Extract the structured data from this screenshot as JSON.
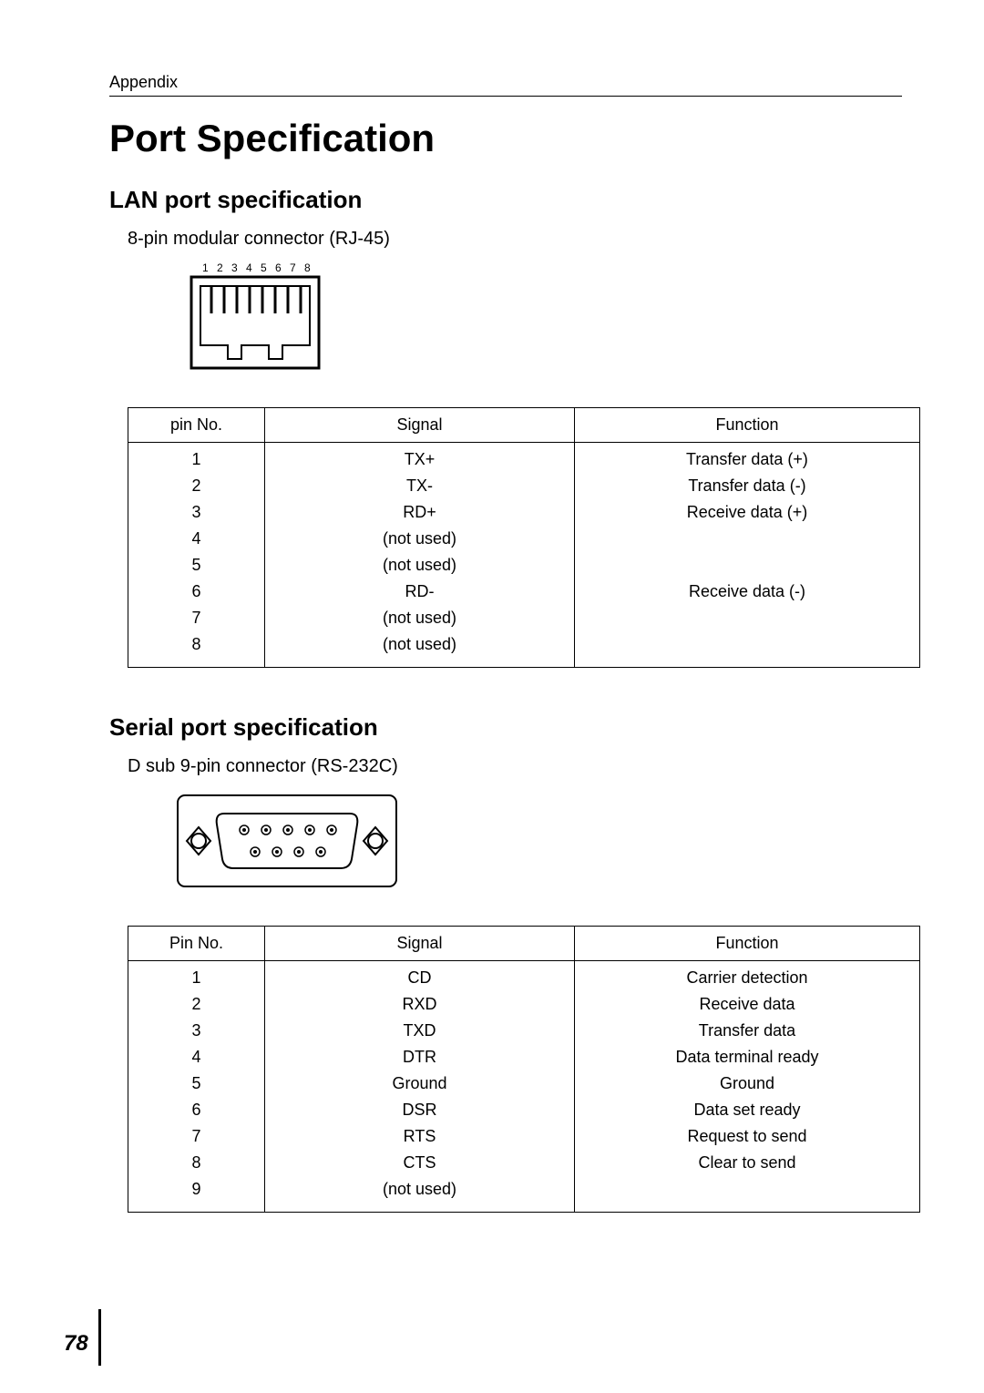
{
  "header": {
    "section": "Appendix"
  },
  "title": "Port Specification",
  "lan": {
    "heading": "LAN port specification",
    "connector": "8-pin modular connector (RJ-45)",
    "pin_labels": "1 2 3 4 5 6 7 8",
    "table": {
      "columns": [
        "pin No.",
        "Signal",
        "Function"
      ],
      "rows": [
        [
          "1",
          "TX+",
          "Transfer data (+)"
        ],
        [
          "2",
          "TX-",
          "Transfer data (-)"
        ],
        [
          "3",
          "RD+",
          "Receive data (+)"
        ],
        [
          "4",
          "(not used)",
          ""
        ],
        [
          "5",
          "(not used)",
          ""
        ],
        [
          "6",
          "RD-",
          "Receive data (-)"
        ],
        [
          "7",
          "(not used)",
          ""
        ],
        [
          "8",
          "(not used)",
          ""
        ]
      ]
    }
  },
  "serial": {
    "heading": "Serial port specification",
    "connector": "D sub 9-pin connector (RS-232C)",
    "table": {
      "columns": [
        "Pin No.",
        "Signal",
        "Function"
      ],
      "rows": [
        [
          "1",
          "CD",
          "Carrier detection"
        ],
        [
          "2",
          "RXD",
          "Receive data"
        ],
        [
          "3",
          "TXD",
          "Transfer data"
        ],
        [
          "4",
          "DTR",
          "Data terminal ready"
        ],
        [
          "5",
          "Ground",
          "Ground"
        ],
        [
          "6",
          "DSR",
          "Data set ready"
        ],
        [
          "7",
          "RTS",
          "Request to send"
        ],
        [
          "8",
          "CTS",
          "Clear to send"
        ],
        [
          "9",
          "(not used)",
          ""
        ]
      ]
    }
  },
  "page_number": "78"
}
